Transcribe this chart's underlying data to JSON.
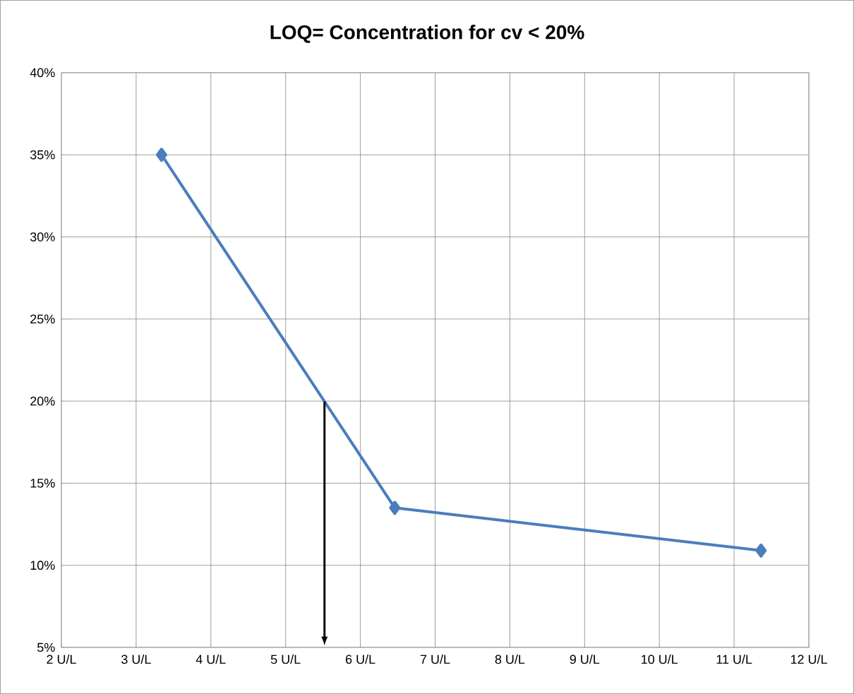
{
  "chart_data": {
    "type": "line",
    "title": "LOQ= Concentration for cv < 20%",
    "x": [
      3.34,
      6.46,
      11.36
    ],
    "series": [
      {
        "color": "#4a7ebb",
        "values": [
          35.0,
          13.5,
          10.9
        ]
      }
    ],
    "xlim": [
      2,
      12
    ],
    "xticks": [
      {
        "value": 2,
        "label": "2 U/L"
      },
      {
        "value": 3,
        "label": "3 U/L"
      },
      {
        "value": 4,
        "label": "4 U/L"
      },
      {
        "value": 5,
        "label": "5 U/L"
      },
      {
        "value": 6,
        "label": "6 U/L"
      },
      {
        "value": 7,
        "label": "7 U/L"
      },
      {
        "value": 8,
        "label": "8 U/L"
      },
      {
        "value": 9,
        "label": "9 U/L"
      },
      {
        "value": 10,
        "label": "10 U/L"
      },
      {
        "value": 11,
        "label": "11 U/L"
      },
      {
        "value": 12,
        "label": "12 U/L"
      }
    ],
    "ylim": [
      5,
      40
    ],
    "yticks": [
      {
        "value": 5,
        "label": "5%"
      },
      {
        "value": 10,
        "label": "10%"
      },
      {
        "value": 15,
        "label": "15%"
      },
      {
        "value": 20,
        "label": "20%"
      },
      {
        "value": 25,
        "label": "25%"
      },
      {
        "value": 30,
        "label": "30%"
      },
      {
        "value": 35,
        "label": "35%"
      },
      {
        "value": 40,
        "label": "40%"
      }
    ],
    "ref_lines": [
      {
        "axis": "x",
        "value": 5.52,
        "color": "#000000"
      }
    ],
    "grid": true,
    "marker": "diamond",
    "line_style": "solid"
  }
}
